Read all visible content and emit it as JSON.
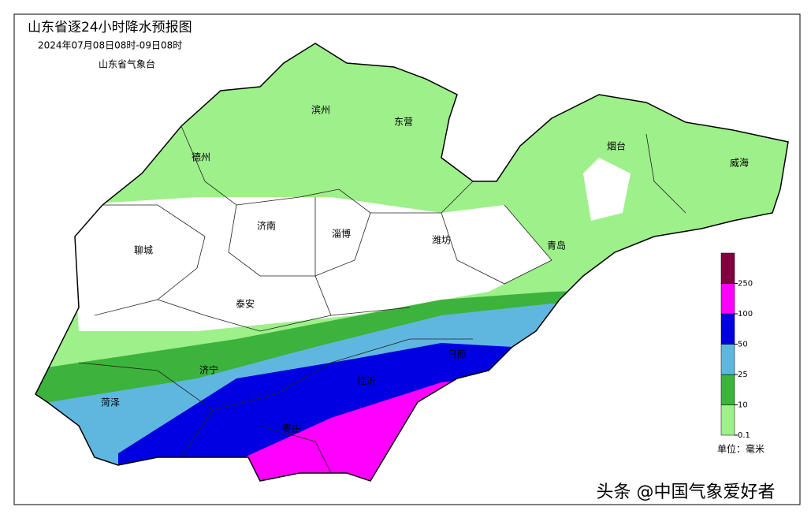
{
  "header": {
    "title": "山东省逐24小时降水预报图",
    "subtitle": "2024年07月08日08时-09日08时",
    "issuer": "山东省气象台"
  },
  "cities": [
    "滨州",
    "东营",
    "德州",
    "烟台",
    "威海",
    "济南",
    "淄博",
    "潍坊",
    "聊城",
    "青岛",
    "泰安",
    "济宁",
    "临沂",
    "日照",
    "菏泽",
    "枣庄"
  ],
  "legend": {
    "ticks": [
      0.1,
      10,
      25,
      50,
      100,
      250
    ],
    "colors": [
      "#9ef08a",
      "#3cb33c",
      "#5fb7e0",
      "#0000e0",
      "#ff00ff",
      "#800040"
    ],
    "unit": "单位：毫米"
  },
  "watermark": "头条 @中国气象爱好者"
}
